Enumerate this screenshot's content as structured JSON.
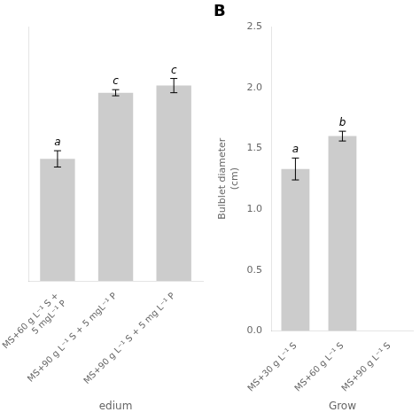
{
  "chart_data": [
    {
      "type": "bar",
      "categories": [
        "MS+60 g L⁻¹ S +\n5 mgL⁻¹ P",
        "MS+90 g L⁻¹ S + 5 mgL⁻¹ P",
        "MS+90 g L⁻¹ S + 5 mg L⁻¹ P"
      ],
      "values": [
        1.2,
        1.85,
        1.92
      ],
      "errors": [
        0.08,
        0.03,
        0.07
      ],
      "letters": [
        "a",
        "c",
        "c"
      ],
      "color": "#cccccc",
      "xlabel": "edium",
      "ylim": [
        0,
        2.5
      ],
      "grid": false,
      "tick_labels": "x"
    },
    {
      "type": "bar",
      "panel_label": "B",
      "categories": [
        "MS+30 g L⁻¹ S",
        "MS+60 g L⁻¹ S",
        "MS+90 g L⁻¹ S"
      ],
      "values": [
        1.33,
        1.6,
        null
      ],
      "errors": [
        0.09,
        0.04,
        null
      ],
      "letters": [
        "a",
        "b",
        null
      ],
      "color": "#cccccc",
      "xlabel": "Grow",
      "ylabel": "Bulblet diameter\n(cm)",
      "ylim": [
        0.0,
        2.5
      ],
      "yticks": [
        {
          "value": 0,
          "label": "0.0"
        },
        0.5,
        {
          "value": 1,
          "label": "1.0"
        },
        1.5,
        {
          "value": 2,
          "label": "2.0"
        },
        2.5
      ],
      "grid": false
    }
  ]
}
